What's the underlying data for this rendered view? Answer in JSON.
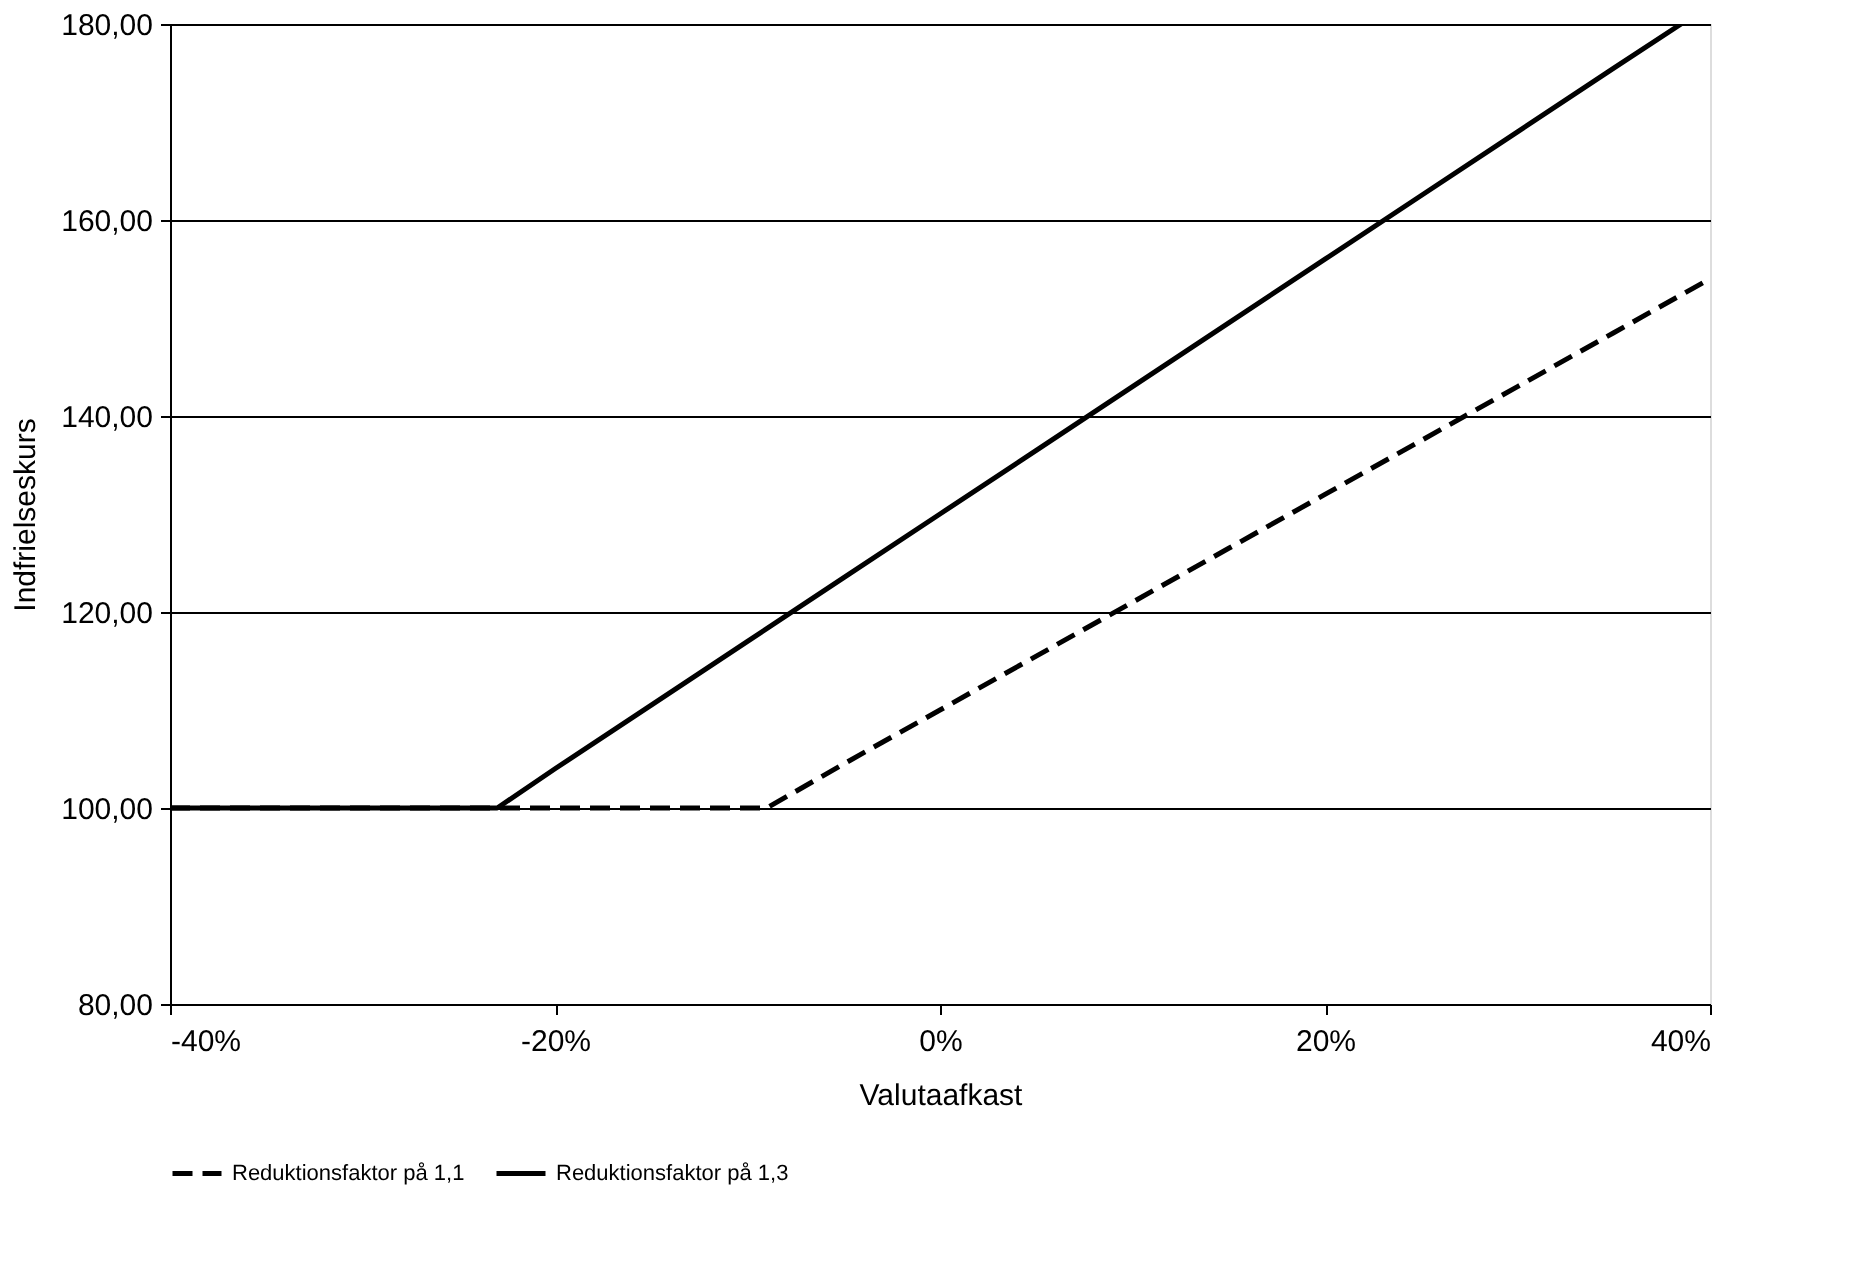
{
  "chart_data": {
    "type": "line",
    "xlabel": "Valutaafkast",
    "ylabel": "Indfrielseskurs",
    "xlim": [
      -40,
      40
    ],
    "xticks": [
      {
        "value": -40,
        "label": "-40%"
      },
      {
        "value": -20,
        "label": "-20%"
      },
      {
        "value": 0,
        "label": "0%"
      },
      {
        "value": 20,
        "label": "20%"
      },
      {
        "value": 40,
        "label": "40%"
      }
    ],
    "ylim": [
      80,
      180
    ],
    "yticks": [
      {
        "value": 80,
        "label": "80,00"
      },
      {
        "value": 100,
        "label": "100,00"
      },
      {
        "value": 120,
        "label": "120,00"
      },
      {
        "value": 140,
        "label": "140,00"
      },
      {
        "value": 160,
        "label": "160,00"
      },
      {
        "value": 180,
        "label": "180,00"
      }
    ],
    "grid": "y",
    "legend": "bottom",
    "marker": "none",
    "series": [
      {
        "name": "Reduktionsfaktor på 1,1",
        "color": "#000000",
        "line_style": "dashed",
        "x": [
          -40,
          -30,
          -20,
          -9,
          -5,
          0,
          5,
          10,
          15,
          20,
          25,
          30,
          35,
          40
        ],
        "values": [
          100,
          100,
          100,
          100,
          104.5,
          110,
          115.5,
          121,
          126.5,
          132,
          137.5,
          143,
          148.5,
          154
        ]
      },
      {
        "name": "Reduktionsfaktor på 1,3",
        "color": "#000000",
        "line_style": "solid",
        "x": [
          -40,
          -30,
          -23,
          -20,
          -15,
          -10,
          -5,
          0,
          5,
          10,
          15,
          20,
          25,
          30,
          35,
          38.5
        ],
        "values": [
          100,
          100,
          100,
          104,
          110.5,
          117,
          123.5,
          130,
          136.5,
          143,
          149.5,
          156,
          162.5,
          169,
          175.5,
          180
        ]
      }
    ]
  }
}
